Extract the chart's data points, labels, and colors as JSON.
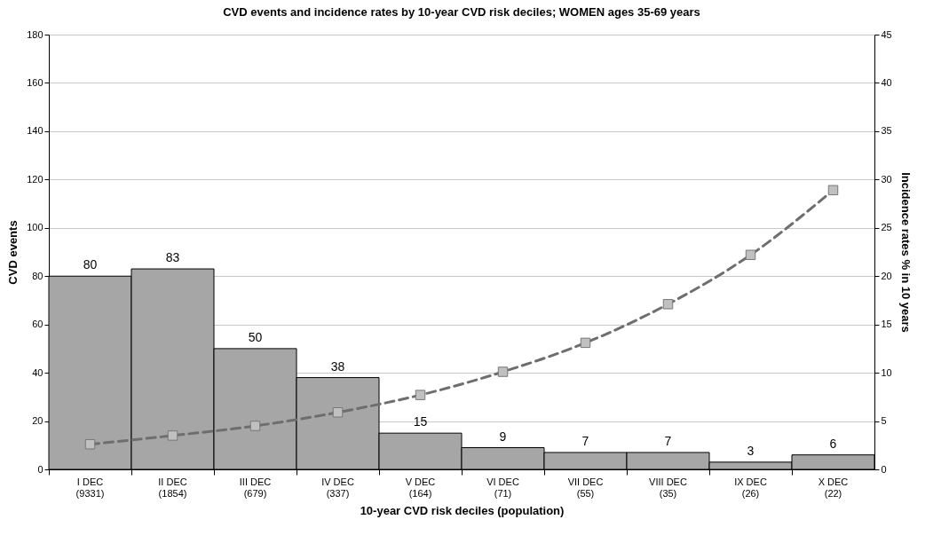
{
  "chart_data": {
    "type": "bar",
    "title": "CVD events and incidence rates by 10-year CVD risk deciles; WOMEN ages 35-69 years",
    "xlabel": "10-year CVD risk deciles (population)",
    "ylabel": "CVD events",
    "y2label": "Incidence rates % in 10 years",
    "categories": [
      "I DEC\n(9331)",
      "II DEC\n(1854)",
      "III DEC\n(679)",
      "IV DEC\n(337)",
      "V DEC\n(164)",
      "VI DEC\n(71)",
      "VII DEC\n(55)",
      "VIII DEC\n(35)",
      "IX DEC\n(26)",
      "X DEC\n(22)"
    ],
    "series": [
      {
        "color": "#a6a6a6",
        "values": [
          80,
          83,
          50,
          38,
          15,
          9,
          7,
          7,
          3,
          6
        ],
        "data_labels": true
      },
      {
        "type": "line",
        "axis": "y2",
        "color": "#6e6e6e",
        "values": [
          2.6,
          3.5,
          4.5,
          5.9,
          7.7,
          10.1,
          13.1,
          17.1,
          22.2,
          28.9
        ]
      }
    ],
    "line_style": "dashed",
    "marker": "square",
    "ylim": [
      0,
      180
    ],
    "yticks": [
      0,
      20,
      40,
      60,
      80,
      100,
      120,
      140,
      160,
      180
    ],
    "y2lim": [
      0,
      45
    ],
    "y2ticks": [
      0,
      5,
      10,
      15,
      20,
      25,
      30,
      35,
      40,
      45
    ],
    "grid": "y"
  }
}
